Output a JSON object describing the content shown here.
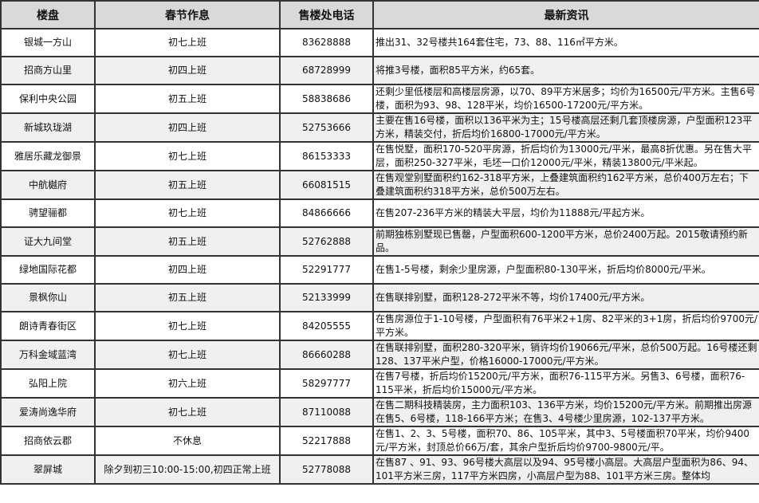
{
  "headers": [
    "楼盘",
    "春节作息",
    "售楼处电话",
    "最新资讯"
  ],
  "rows": [
    {
      "name": "银城一方山",
      "schedule": "初七上班",
      "phone": "83628888",
      "news": "推出31、32号楼共164套住宅，73、88、116㎡平方米。"
    },
    {
      "name": "招商方山里",
      "schedule": "初四上班",
      "phone": "68728999",
      "news": "将推3号楼，面积85平方米，约65套。"
    },
    {
      "name": "保利中央公园",
      "schedule": "初五上班",
      "phone": "58838686",
      "news": "还剩少里低楼层和高楼层房源，以70、89平方米居多；均价为16500元/平方米。主售6号楼，面积为93、98、128平米，均价16500-17200元/平方米。"
    },
    {
      "name": "新城玖珑湖",
      "schedule": "初四上班",
      "phone": "52753666",
      "news": "主要在售16号楼，面积以136平米为主；15号楼高层还剩几套顶楼房源，户型面积123平方米，精装交付，折后均价16800-17000元/平方米。"
    },
    {
      "name": "雅居乐藏龙御景",
      "schedule": "初七上班",
      "phone": "86153333",
      "news": "在售悦墅，面积170-520平房源，折后均价为13000元/平米，最高8折优惠。另在售大平层，面积250-327平米，毛坯一口价12000元/平米，精装13800元/平米起。"
    },
    {
      "name": "中航樾府",
      "schedule": "初五上班",
      "phone": "66081515",
      "news": "在售观堂别墅面积约162-318平方米，上叠建筑面积约162平方米，总价400万左右；下叠建筑面积约318平方米，总价500万左右。"
    },
    {
      "name": "骋望骊都",
      "schedule": "初七上班",
      "phone": "84866666",
      "news": "在售207-236平方米的精装大平层，均价为11888元/平起方米。"
    },
    {
      "name": "证大九间堂",
      "schedule": "初五上班",
      "phone": "52762888",
      "news": "前期独栋别墅现已售罄，户型面积600-1200平方米，总价2400万起。2015敬请预约新品。"
    },
    {
      "name": "绿地国际花都",
      "schedule": "初四上班",
      "phone": "52291777",
      "news": "在售1-5号楼，剩余少里房源，户型面积80-130平米，折后均价8000元/平米。"
    },
    {
      "name": "景枫你山",
      "schedule": "初五上班",
      "phone": "52133999",
      "news": "在售联排别墅，面积128-272平米不等，均价17400元/平方米。"
    },
    {
      "name": "朗诗青春街区",
      "schedule": "初七上班",
      "phone": "84205555",
      "news": "在售房源位于1-10号楼，户型面积有76平米2+1房、82平米的3+1房，折后均价9700元/平方米。"
    },
    {
      "name": "万科金域蓝湾",
      "schedule": "初七上班",
      "phone": "86660288",
      "news": "在售联排别墅，面积280-320平米，销许均价19066元/平米，总价500万起。16号楼还剩128、137平米户型，价格16000-17000元/平方米。"
    },
    {
      "name": "弘阳上院",
      "schedule": "初六上班",
      "phone": "58297777",
      "news": "在售7号楼，折后均价15200元/平方米，面积76-115平方米。另售3、6号楼，面积76-115平米，折后均价15000元/平方米。"
    },
    {
      "name": "爱涛尚逸华府",
      "schedule": "初七上班",
      "phone": "87110088",
      "news": "在售二期科技精装房，主力面积103、136平方米，均价15200元/平方米。前期推出房源在售5、6号楼，118-166平方米；在售3、4号楼少里房源，102-137平方米。"
    },
    {
      "name": "招商依云郡",
      "schedule": "不休息",
      "phone": "52217888",
      "news": "在售1、2、3、5号楼，面积70、86、105平米，其中3、5号楼面积70平米，均价9400元/平方米，封顶总价66万/套，其余户型折后均价9700-9800元/平。"
    },
    {
      "name": "翠屏城",
      "schedule": "除夕到初三10:00-15:00,初四正常上班",
      "phone": "52778088",
      "news": "在售87 、91、93、96号楼大高层以及94、95号楼小高层。大高层户型面积为86、94、101平方米三房，117平方米四房，小高层户型为88、101平方米三房。整体均"
    }
  ]
}
